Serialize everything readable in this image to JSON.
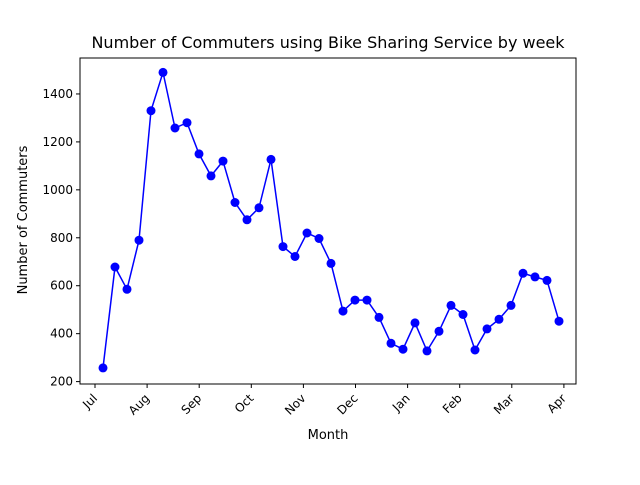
{
  "chart_data": {
    "type": "line",
    "title": "Number of Commuters using Bike Sharing Service by week",
    "xlabel": "Month",
    "ylabel": "Number of Commuters",
    "x_tick_labels": [
      "Jul",
      "Aug",
      "Sep",
      "Oct",
      "Nov",
      "Dec",
      "Jan",
      "Feb",
      "Mar",
      "Apr"
    ],
    "y_ticks": [
      200,
      400,
      600,
      800,
      1000,
      1200,
      1400
    ],
    "ylim": [
      190,
      1550
    ],
    "grid": false,
    "legend": "none",
    "series": [
      {
        "color": "#0000ff",
        "marker": "circle",
        "values": [
          257,
          678,
          585,
          790,
          1330,
          1490,
          1258,
          1280,
          1150,
          1058,
          1120,
          947,
          875,
          925,
          1127,
          763,
          722,
          820,
          797,
          693,
          494,
          540,
          540,
          468,
          360,
          335,
          445,
          328,
          410,
          518,
          480,
          332,
          420,
          460,
          518,
          652,
          637,
          622,
          452
        ]
      }
    ]
  }
}
